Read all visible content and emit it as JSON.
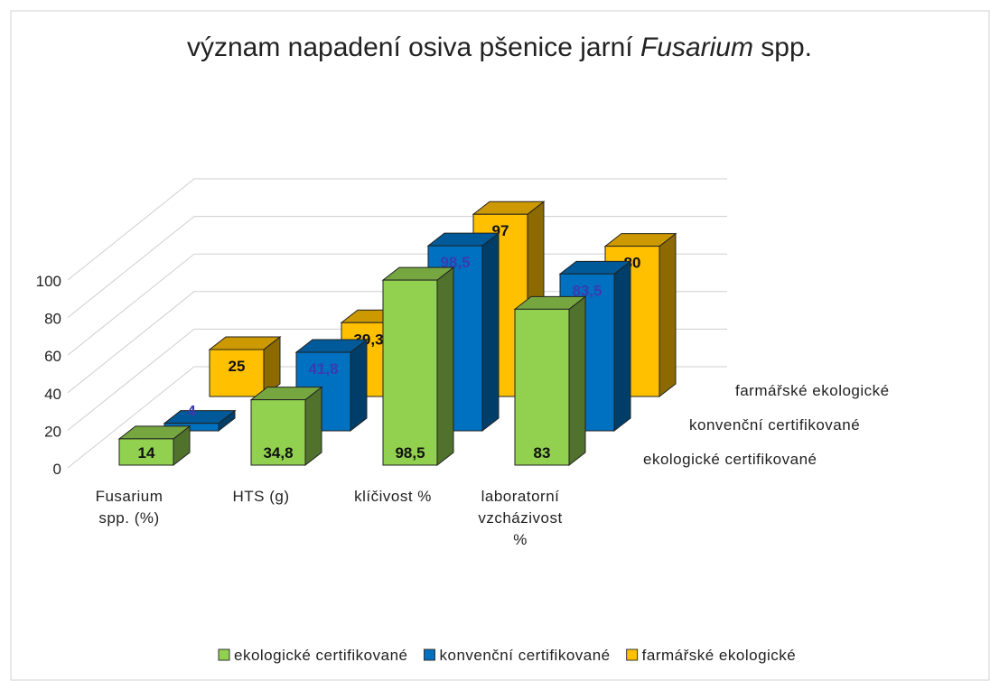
{
  "chart_data": {
    "type": "bar3d",
    "title": [
      "význam napadení osiva pšenice jarní ",
      "Fusarium",
      " spp."
    ],
    "categories": [
      "Fusarium spp. (%)",
      "HTS (g)",
      "klíčivost %",
      "laboratorní vzcházivost %"
    ],
    "series": [
      {
        "name": "ekologické certifikované",
        "color": "#92d050",
        "values": [
          14,
          34.8,
          98.5,
          83
        ],
        "value_labels": [
          "14",
          "34,8",
          "98,5",
          "83"
        ]
      },
      {
        "name": "konvenční certifikované",
        "color": "#0070c0",
        "values": [
          4,
          41.8,
          98.5,
          83.5
        ],
        "value_labels": [
          "4",
          "41,8",
          "98,5",
          "83,5"
        ]
      },
      {
        "name": "farmářské ekologické",
        "color": "#ffc000",
        "values": [
          25,
          39.3,
          97,
          80
        ],
        "value_labels": [
          "25",
          "39,3",
          "97",
          "80"
        ]
      }
    ],
    "ylim": [
      0,
      100
    ],
    "yticks": [
      0,
      20,
      40,
      60,
      80,
      100
    ],
    "grid": true,
    "legend": "bottom"
  }
}
